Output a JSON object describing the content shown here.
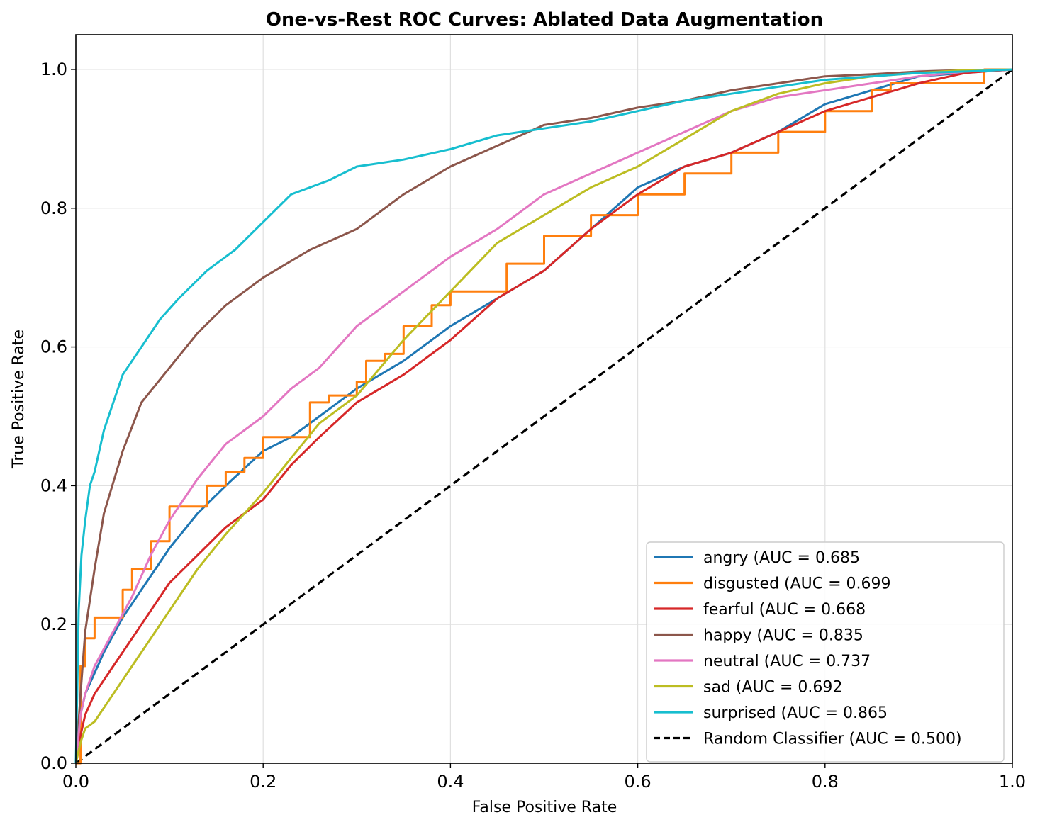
{
  "chart_data": {
    "type": "line",
    "title": "One-vs-Rest ROC Curves: Ablated Data Augmentation",
    "xlabel": "False Positive Rate",
    "ylabel": "True Positive Rate",
    "xlim": [
      0.0,
      1.0
    ],
    "ylim": [
      0.0,
      1.05
    ],
    "grid": true,
    "legend_position": "lower-right",
    "x_ticks": [
      0.0,
      0.2,
      0.4,
      0.6,
      0.8,
      1.0
    ],
    "y_ticks": [
      0.0,
      0.2,
      0.4,
      0.6,
      0.8,
      1.0
    ],
    "x_tick_labels": [
      "0.0",
      "0.2",
      "0.4",
      "0.6",
      "0.8",
      "1.0"
    ],
    "y_tick_labels": [
      "0.0",
      "0.2",
      "0.4",
      "0.6",
      "0.8",
      "1.0"
    ],
    "series": [
      {
        "name": "angry (AUC = 0.685",
        "color": "#1f77b4",
        "style": "solid",
        "x": [
          0.0,
          0.005,
          0.01,
          0.02,
          0.03,
          0.05,
          0.07,
          0.1,
          0.13,
          0.16,
          0.2,
          0.23,
          0.26,
          0.3,
          0.35,
          0.4,
          0.45,
          0.5,
          0.55,
          0.6,
          0.65,
          0.7,
          0.75,
          0.8,
          0.85,
          0.9,
          0.95,
          1.0
        ],
        "y": [
          0.0,
          0.07,
          0.1,
          0.13,
          0.16,
          0.21,
          0.25,
          0.31,
          0.36,
          0.4,
          0.45,
          0.47,
          0.5,
          0.54,
          0.58,
          0.63,
          0.67,
          0.71,
          0.77,
          0.83,
          0.86,
          0.88,
          0.91,
          0.95,
          0.97,
          0.99,
          0.995,
          1.0
        ]
      },
      {
        "name": "disgusted (AUC = 0.699",
        "color": "#ff7f0e",
        "style": "step",
        "x": [
          0.0,
          0.005,
          0.01,
          0.02,
          0.04,
          0.05,
          0.06,
          0.08,
          0.1,
          0.12,
          0.14,
          0.16,
          0.18,
          0.2,
          0.22,
          0.25,
          0.27,
          0.3,
          0.31,
          0.33,
          0.35,
          0.38,
          0.4,
          0.43,
          0.46,
          0.5,
          0.55,
          0.6,
          0.65,
          0.7,
          0.75,
          0.8,
          0.85,
          0.87,
          0.97,
          0.97,
          1.0
        ],
        "y": [
          0.0,
          0.14,
          0.18,
          0.21,
          0.21,
          0.25,
          0.28,
          0.32,
          0.37,
          0.37,
          0.4,
          0.42,
          0.44,
          0.47,
          0.47,
          0.52,
          0.53,
          0.55,
          0.58,
          0.59,
          0.63,
          0.66,
          0.68,
          0.68,
          0.72,
          0.76,
          0.79,
          0.82,
          0.85,
          0.88,
          0.91,
          0.94,
          0.97,
          0.98,
          0.98,
          1.0,
          1.0
        ]
      },
      {
        "name": "fearful (AUC = 0.668",
        "color": "#d62728",
        "style": "solid",
        "x": [
          0.0,
          0.005,
          0.01,
          0.02,
          0.04,
          0.06,
          0.08,
          0.1,
          0.13,
          0.16,
          0.2,
          0.23,
          0.26,
          0.3,
          0.35,
          0.4,
          0.45,
          0.5,
          0.55,
          0.6,
          0.65,
          0.7,
          0.75,
          0.8,
          0.85,
          0.9,
          0.95,
          1.0
        ],
        "y": [
          0.0,
          0.04,
          0.07,
          0.1,
          0.14,
          0.18,
          0.22,
          0.26,
          0.3,
          0.34,
          0.38,
          0.43,
          0.47,
          0.52,
          0.56,
          0.61,
          0.67,
          0.71,
          0.77,
          0.82,
          0.86,
          0.88,
          0.91,
          0.94,
          0.96,
          0.98,
          0.995,
          1.0
        ]
      },
      {
        "name": "happy (AUC = 0.835",
        "color": "#8c564b",
        "style": "solid",
        "x": [
          0.0,
          0.005,
          0.01,
          0.02,
          0.03,
          0.05,
          0.07,
          0.1,
          0.13,
          0.16,
          0.2,
          0.25,
          0.3,
          0.35,
          0.4,
          0.45,
          0.5,
          0.55,
          0.6,
          0.65,
          0.7,
          0.75,
          0.8,
          0.85,
          0.9,
          0.95,
          1.0
        ],
        "y": [
          0.0,
          0.1,
          0.19,
          0.28,
          0.36,
          0.45,
          0.52,
          0.57,
          0.62,
          0.66,
          0.7,
          0.74,
          0.77,
          0.82,
          0.86,
          0.89,
          0.92,
          0.93,
          0.945,
          0.955,
          0.97,
          0.98,
          0.99,
          0.993,
          0.997,
          0.999,
          1.0
        ]
      },
      {
        "name": "neutral (AUC = 0.737",
        "color": "#e377c2",
        "style": "solid",
        "x": [
          0.0,
          0.005,
          0.01,
          0.02,
          0.04,
          0.06,
          0.08,
          0.1,
          0.13,
          0.16,
          0.2,
          0.23,
          0.26,
          0.3,
          0.35,
          0.4,
          0.45,
          0.5,
          0.55,
          0.6,
          0.65,
          0.7,
          0.75,
          0.8,
          0.85,
          0.9,
          0.95,
          1.0
        ],
        "y": [
          0.0,
          0.07,
          0.1,
          0.14,
          0.19,
          0.24,
          0.3,
          0.35,
          0.41,
          0.46,
          0.5,
          0.54,
          0.57,
          0.63,
          0.68,
          0.73,
          0.77,
          0.82,
          0.85,
          0.88,
          0.91,
          0.94,
          0.96,
          0.97,
          0.98,
          0.99,
          0.997,
          1.0
        ]
      },
      {
        "name": "sad (AUC = 0.692",
        "color": "#bcbd22",
        "style": "solid",
        "x": [
          0.0,
          0.005,
          0.01,
          0.02,
          0.04,
          0.06,
          0.08,
          0.1,
          0.13,
          0.16,
          0.2,
          0.23,
          0.26,
          0.3,
          0.35,
          0.4,
          0.45,
          0.5,
          0.55,
          0.6,
          0.65,
          0.7,
          0.75,
          0.8,
          0.85,
          0.9,
          0.95,
          1.0
        ],
        "y": [
          0.0,
          0.03,
          0.05,
          0.06,
          0.1,
          0.14,
          0.18,
          0.22,
          0.28,
          0.33,
          0.39,
          0.44,
          0.49,
          0.53,
          0.61,
          0.68,
          0.75,
          0.79,
          0.83,
          0.86,
          0.9,
          0.94,
          0.965,
          0.98,
          0.99,
          0.995,
          0.999,
          1.0
        ]
      },
      {
        "name": "surprised (AUC = 0.865",
        "color": "#17becf",
        "style": "solid",
        "x": [
          0.0,
          0.003,
          0.006,
          0.01,
          0.015,
          0.02,
          0.03,
          0.04,
          0.05,
          0.07,
          0.09,
          0.11,
          0.14,
          0.17,
          0.2,
          0.23,
          0.27,
          0.3,
          0.35,
          0.4,
          0.45,
          0.5,
          0.55,
          0.6,
          0.65,
          0.7,
          0.75,
          0.8,
          0.85,
          0.9,
          0.95,
          1.0
        ],
        "y": [
          0.0,
          0.22,
          0.3,
          0.35,
          0.4,
          0.42,
          0.48,
          0.52,
          0.56,
          0.6,
          0.64,
          0.67,
          0.71,
          0.74,
          0.78,
          0.82,
          0.84,
          0.86,
          0.87,
          0.885,
          0.905,
          0.915,
          0.925,
          0.94,
          0.955,
          0.965,
          0.975,
          0.985,
          0.99,
          0.995,
          0.997,
          1.0
        ]
      }
    ],
    "reference_line": {
      "name": "Random Classifier (AUC = 0.500)",
      "color": "#000000",
      "style": "dashed",
      "x": [
        0.0,
        1.0
      ],
      "y": [
        0.0,
        1.0
      ]
    }
  }
}
